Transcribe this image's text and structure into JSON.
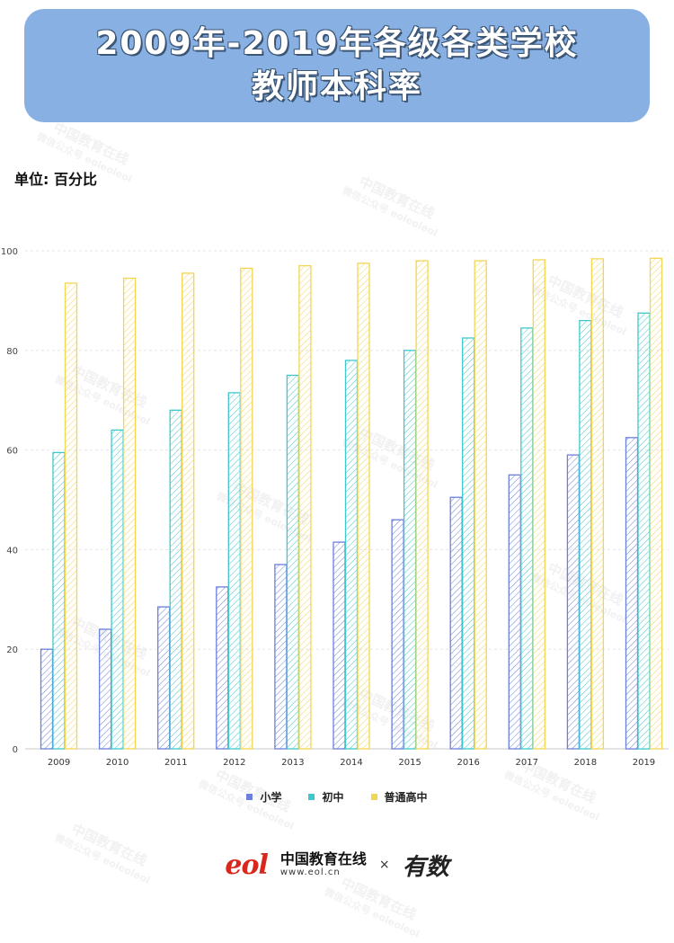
{
  "title": {
    "line1": "2009年-2019年各级各类学校",
    "line2": "教师本科率"
  },
  "unit_label": "单位: 百分比",
  "chart_data": {
    "type": "bar",
    "categories": [
      "2009",
      "2010",
      "2011",
      "2012",
      "2013",
      "2014",
      "2015",
      "2016",
      "2017",
      "2018",
      "2019"
    ],
    "series": [
      {
        "name": "小学",
        "color": "#6b7fdc",
        "values": [
          20,
          24,
          28.5,
          32.5,
          37,
          41.5,
          46,
          50.5,
          55,
          59,
          62.5
        ]
      },
      {
        "name": "初中",
        "color": "#3ec8cc",
        "values": [
          59.5,
          64,
          68,
          71.5,
          75,
          78,
          80,
          82.5,
          84.5,
          86,
          87.5
        ]
      },
      {
        "name": "普通高中",
        "color": "#f2d552",
        "values": [
          93.5,
          94.5,
          95.5,
          96.5,
          97,
          97.5,
          98,
          98,
          98.2,
          98.4,
          98.5
        ]
      }
    ],
    "yticks": [
      "0",
      "20",
      "40",
      "60",
      "80",
      "100"
    ],
    "ylim": [
      0,
      100
    ],
    "grid": true,
    "legend_position": "bottom"
  },
  "legend": [
    {
      "label": "小学",
      "color": "#6b7fdc"
    },
    {
      "label": "初中",
      "color": "#3ec8cc"
    },
    {
      "label": "普通高中",
      "color": "#f2d552"
    }
  ],
  "footer": {
    "logo_text": "eol",
    "brand_name": "中国教育在线",
    "brand_url": "www.eol.cn",
    "times": "×",
    "partner_logo": "有数"
  },
  "watermark": {
    "line1": "中国教育在线",
    "line2": "微信公众号 eoleoleol"
  }
}
